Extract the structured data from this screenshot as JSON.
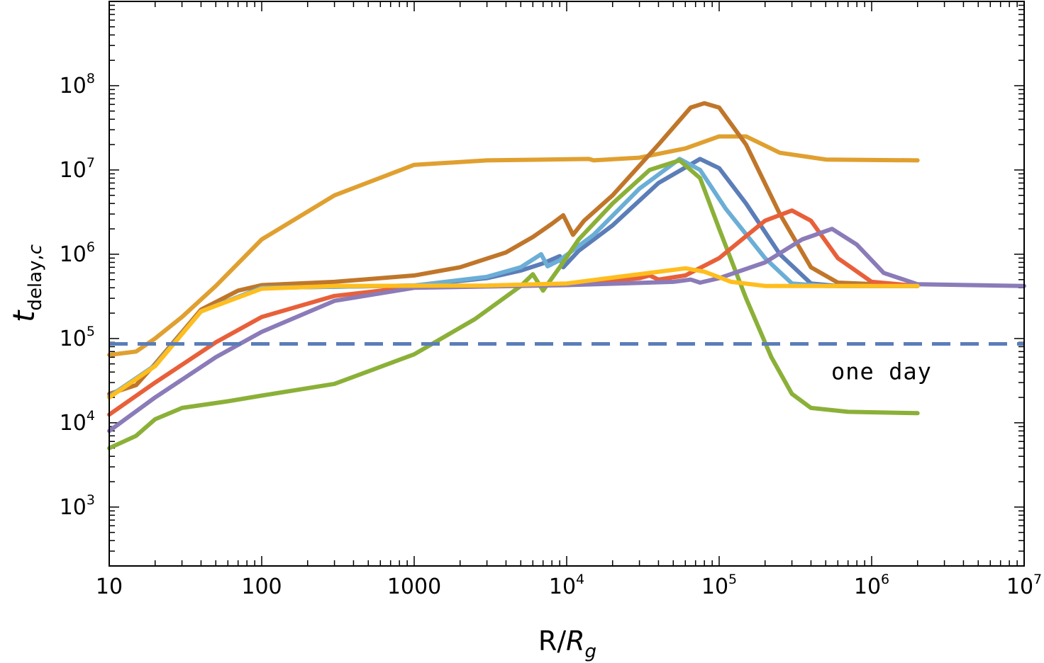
{
  "chart_data": {
    "type": "line",
    "xscale": "log",
    "yscale": "log",
    "xlim": [
      10,
      10000000
    ],
    "ylim": [
      200,
      1000000000
    ],
    "xlabel": {
      "main": "R/",
      "italic": "R",
      "sub": "g"
    },
    "ylabel": {
      "italic": "t",
      "sub": "delay,",
      "sub_italic": "c"
    },
    "x_ticks": [
      {
        "value": 10,
        "base": "10",
        "exp": ""
      },
      {
        "value": 100,
        "base": "100",
        "exp": ""
      },
      {
        "value": 1000,
        "base": "1000",
        "exp": ""
      },
      {
        "value": 10000,
        "base": "10",
        "exp": "4"
      },
      {
        "value": 100000,
        "base": "10",
        "exp": "5"
      },
      {
        "value": 1000000,
        "base": "10",
        "exp": "6"
      },
      {
        "value": 10000000,
        "base": "10",
        "exp": "7"
      }
    ],
    "y_ticks": [
      {
        "value": 1000,
        "base": "10",
        "exp": "3"
      },
      {
        "value": 10000,
        "base": "10",
        "exp": "4"
      },
      {
        "value": 100000,
        "base": "10",
        "exp": "5"
      },
      {
        "value": 1000000,
        "base": "10",
        "exp": "6"
      },
      {
        "value": 10000000,
        "base": "10",
        "exp": "7"
      },
      {
        "value": 100000000,
        "base": "10",
        "exp": "8"
      }
    ],
    "reference_line": {
      "y": 86400,
      "color": "#5B7DB8",
      "style": "dashed",
      "label": "one day"
    },
    "series": [
      {
        "color": "#E0A030",
        "points": [
          [
            10,
            64000
          ],
          [
            15,
            70000
          ],
          [
            20,
            100000
          ],
          [
            30,
            180000
          ],
          [
            50,
            420000
          ],
          [
            100,
            1500000
          ],
          [
            300,
            5000000
          ],
          [
            1000,
            11500000
          ],
          [
            3000,
            13000000
          ],
          [
            14000,
            13500000
          ],
          [
            15000,
            13000000
          ],
          [
            30000,
            14000000
          ],
          [
            60000,
            18000000
          ],
          [
            100000,
            25000000
          ],
          [
            150000,
            25000000
          ],
          [
            250000,
            16000000
          ],
          [
            500000,
            13300000
          ],
          [
            2000000,
            13000000
          ]
        ]
      },
      {
        "color": "#C0762A",
        "points": [
          [
            10,
            22000
          ],
          [
            15,
            28000
          ],
          [
            20,
            50000
          ],
          [
            40,
            220000
          ],
          [
            70,
            370000
          ],
          [
            100,
            430000
          ],
          [
            300,
            470000
          ],
          [
            1000,
            560000
          ],
          [
            2000,
            700000
          ],
          [
            4000,
            1050000
          ],
          [
            6000,
            1600000
          ],
          [
            8000,
            2300000
          ],
          [
            9500,
            2900000
          ],
          [
            11000,
            1700000
          ],
          [
            13000,
            2500000
          ],
          [
            20000,
            5000000
          ],
          [
            40000,
            20000000
          ],
          [
            65000,
            55000000
          ],
          [
            80000,
            62000000
          ],
          [
            100000,
            55000000
          ],
          [
            150000,
            20000000
          ],
          [
            250000,
            3000000
          ],
          [
            400000,
            700000
          ],
          [
            600000,
            460000
          ],
          [
            2000000,
            420000
          ]
        ]
      },
      {
        "color": "#5B7DB8",
        "points": [
          [
            10,
            20500
          ],
          [
            20,
            48000
          ],
          [
            40,
            210000
          ],
          [
            100,
            400000
          ],
          [
            1000,
            425000
          ],
          [
            3000,
            520000
          ],
          [
            5000,
            640000
          ],
          [
            7000,
            780000
          ],
          [
            9000,
            950000
          ],
          [
            9500,
            700000
          ],
          [
            12000,
            1100000
          ],
          [
            20000,
            2200000
          ],
          [
            40000,
            7000000
          ],
          [
            75000,
            13500000
          ],
          [
            100000,
            10500000
          ],
          [
            150000,
            4000000
          ],
          [
            250000,
            1000000
          ],
          [
            400000,
            450000
          ],
          [
            600000,
            420000
          ],
          [
            2000000,
            420000
          ]
        ]
      },
      {
        "color": "#6BAED6",
        "points": [
          [
            10,
            20500
          ],
          [
            20,
            48000
          ],
          [
            40,
            210000
          ],
          [
            100,
            400000
          ],
          [
            1000,
            425000
          ],
          [
            3000,
            540000
          ],
          [
            5000,
            700000
          ],
          [
            6800,
            1000000
          ],
          [
            7500,
            720000
          ],
          [
            9000,
            850000
          ],
          [
            15000,
            1700000
          ],
          [
            30000,
            6000000
          ],
          [
            55000,
            13500000
          ],
          [
            75000,
            10000000
          ],
          [
            110000,
            3500000
          ],
          [
            200000,
            900000
          ],
          [
            300000,
            450000
          ],
          [
            500000,
            420000
          ],
          [
            2000000,
            420000
          ]
        ]
      },
      {
        "color": "#8BB038",
        "points": [
          [
            10,
            5000
          ],
          [
            15,
            7000
          ],
          [
            20,
            11000
          ],
          [
            30,
            15000
          ],
          [
            60,
            18000
          ],
          [
            100,
            21000
          ],
          [
            300,
            29000
          ],
          [
            1000,
            65000
          ],
          [
            2500,
            170000
          ],
          [
            5000,
            420000
          ],
          [
            6000,
            580000
          ],
          [
            7000,
            370000
          ],
          [
            9000,
            700000
          ],
          [
            12000,
            1500000
          ],
          [
            20000,
            4000000
          ],
          [
            35000,
            10000000
          ],
          [
            55000,
            13000000
          ],
          [
            75000,
            8000000
          ],
          [
            100000,
            2000000
          ],
          [
            150000,
            300000
          ],
          [
            220000,
            60000
          ],
          [
            300000,
            22000
          ],
          [
            400000,
            15000
          ],
          [
            700000,
            13500.0
          ],
          [
            2000000,
            13000
          ]
        ]
      },
      {
        "color": "#E8603A",
        "points": [
          [
            10,
            12500
          ],
          [
            20,
            30000
          ],
          [
            50,
            90000
          ],
          [
            100,
            180000
          ],
          [
            300,
            320000
          ],
          [
            1000,
            410000
          ],
          [
            10000,
            430000
          ],
          [
            30000,
            520000
          ],
          [
            35000,
            560000
          ],
          [
            40000,
            500000
          ],
          [
            60000,
            560000
          ],
          [
            100000,
            900000
          ],
          [
            200000,
            2500000
          ],
          [
            300000,
            3300000
          ],
          [
            400000,
            2500000
          ],
          [
            600000,
            900000
          ],
          [
            1000000,
            470000
          ],
          [
            2000000,
            420000
          ]
        ]
      },
      {
        "color": "#8B7BB8",
        "points": [
          [
            10,
            8000
          ],
          [
            20,
            20000
          ],
          [
            50,
            60000
          ],
          [
            100,
            120000
          ],
          [
            300,
            280000
          ],
          [
            1000,
            400000
          ],
          [
            10000,
            430000
          ],
          [
            50000,
            470000
          ],
          [
            65000,
            500000
          ],
          [
            75000,
            460000
          ],
          [
            100000,
            520000
          ],
          [
            200000,
            800000
          ],
          [
            350000,
            1500000
          ],
          [
            550000,
            2000000
          ],
          [
            800000,
            1300000
          ],
          [
            1200000,
            600000
          ],
          [
            2000000,
            440000
          ],
          [
            10000000,
            420000
          ]
        ]
      },
      {
        "color": "#FFBE1E",
        "points": [
          [
            10,
            20000
          ],
          [
            20,
            47000
          ],
          [
            40,
            210000
          ],
          [
            100,
            390000
          ],
          [
            300,
            420000
          ],
          [
            3000,
            425000
          ],
          [
            10000,
            450000
          ],
          [
            30000,
            580000
          ],
          [
            60000,
            680000
          ],
          [
            80000,
            620000
          ],
          [
            120000,
            470000
          ],
          [
            200000,
            420000
          ],
          [
            2000000,
            420000
          ]
        ]
      }
    ]
  }
}
